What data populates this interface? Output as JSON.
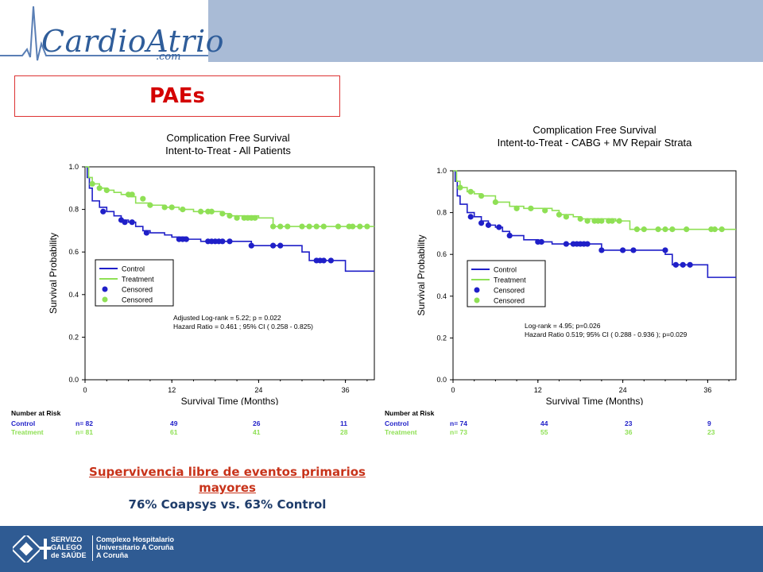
{
  "header": {
    "logo_main": "CardioAtrio",
    "logo_sub": ".com",
    "slide_title": "PAEs"
  },
  "caption": {
    "line1a": "Supervivencia libre de eventos primarios",
    "line1b": "mayores",
    "line2": "76% Coapsys vs.  63% Control"
  },
  "footer": {
    "org1a": "SERVIZO",
    "org1b": "GALEGO",
    "org1c": "de SAÚDE",
    "org2a": "Complexo Hospitalario",
    "org2b": "Universitario A Coruña",
    "org2c": "A Coruña"
  },
  "colors": {
    "control": "#1f1fc8",
    "treatment": "#8fe055",
    "topbar": "#a9bbd6",
    "footer": "#2f5b93"
  },
  "chart_data": [
    {
      "type": "line",
      "title": "Complication Free Survival",
      "subtitle": "Intent-to-Treat - All Patients",
      "xlabel": "Survival Time (Months)",
      "ylabel": "Survival Probability",
      "xlim": [
        0,
        40
      ],
      "ylim": [
        0,
        1.0
      ],
      "xticks": [
        "0",
        "12",
        "24",
        "36"
      ],
      "yticks": [
        "0.0",
        "0.2",
        "0.4",
        "0.6",
        "0.8",
        "1.0"
      ],
      "legend": [
        "Control",
        "Treatment",
        "Censored",
        "Censored"
      ],
      "annotation1": "Adjusted Log-rank = 5.22; p = 0.022",
      "annotation2": "Hazard Ratio = 0.461 ; 95% CI ( 0.258 - 0.825)",
      "series": [
        {
          "name": "Control",
          "step": [
            [
              0,
              1.0
            ],
            [
              0.3,
              0.95
            ],
            [
              0.6,
              0.9
            ],
            [
              1,
              0.84
            ],
            [
              2,
              0.81
            ],
            [
              3,
              0.79
            ],
            [
              4,
              0.77
            ],
            [
              5,
              0.75
            ],
            [
              6,
              0.74
            ],
            [
              7,
              0.72
            ],
            [
              8,
              0.7
            ],
            [
              9,
              0.69
            ],
            [
              11,
              0.68
            ],
            [
              12,
              0.67
            ],
            [
              14,
              0.66
            ],
            [
              16,
              0.65
            ],
            [
              18,
              0.65
            ],
            [
              21,
              0.65
            ],
            [
              23,
              0.63
            ],
            [
              26,
              0.63
            ],
            [
              30,
              0.6
            ],
            [
              31,
              0.56
            ],
            [
              33,
              0.56
            ],
            [
              36,
              0.51
            ],
            [
              40,
              0.51
            ]
          ],
          "censored": [
            [
              2.5,
              0.79
            ],
            [
              5,
              0.75
            ],
            [
              5.5,
              0.74
            ],
            [
              6.5,
              0.74
            ],
            [
              8.5,
              0.69
            ],
            [
              13,
              0.66
            ],
            [
              13.5,
              0.66
            ],
            [
              14,
              0.66
            ],
            [
              17,
              0.65
            ],
            [
              17.5,
              0.65
            ],
            [
              18,
              0.65
            ],
            [
              18.5,
              0.65
            ],
            [
              19,
              0.65
            ],
            [
              20,
              0.65
            ],
            [
              23,
              0.63
            ],
            [
              26,
              0.63
            ],
            [
              27,
              0.63
            ],
            [
              32,
              0.56
            ],
            [
              32.5,
              0.56
            ],
            [
              33,
              0.56
            ],
            [
              34,
              0.56
            ]
          ]
        },
        {
          "name": "Treatment",
          "step": [
            [
              0,
              1.0
            ],
            [
              0.5,
              0.95
            ],
            [
              1,
              0.92
            ],
            [
              2,
              0.9
            ],
            [
              3,
              0.89
            ],
            [
              4,
              0.88
            ],
            [
              5,
              0.87
            ],
            [
              6,
              0.86
            ],
            [
              7,
              0.83
            ],
            [
              9,
              0.82
            ],
            [
              11,
              0.81
            ],
            [
              13,
              0.8
            ],
            [
              15,
              0.79
            ],
            [
              17,
              0.79
            ],
            [
              19,
              0.78
            ],
            [
              20,
              0.77
            ],
            [
              24,
              0.76
            ],
            [
              26,
              0.72
            ],
            [
              30,
              0.72
            ],
            [
              36,
              0.72
            ],
            [
              40,
              0.72
            ]
          ],
          "censored": [
            [
              1,
              0.92
            ],
            [
              2,
              0.9
            ],
            [
              3,
              0.89
            ],
            [
              6,
              0.87
            ],
            [
              6.5,
              0.87
            ],
            [
              8,
              0.85
            ],
            [
              9,
              0.82
            ],
            [
              11,
              0.81
            ],
            [
              12,
              0.81
            ],
            [
              13.5,
              0.8
            ],
            [
              16,
              0.79
            ],
            [
              17,
              0.79
            ],
            [
              17.5,
              0.79
            ],
            [
              19,
              0.78
            ],
            [
              20,
              0.77
            ],
            [
              21,
              0.76
            ],
            [
              22,
              0.76
            ],
            [
              22.5,
              0.76
            ],
            [
              23,
              0.76
            ],
            [
              23.5,
              0.76
            ],
            [
              26,
              0.72
            ],
            [
              27,
              0.72
            ],
            [
              28,
              0.72
            ],
            [
              30,
              0.72
            ],
            [
              31,
              0.72
            ],
            [
              32,
              0.72
            ],
            [
              33,
              0.72
            ],
            [
              35,
              0.72
            ],
            [
              36.5,
              0.72
            ],
            [
              37,
              0.72
            ],
            [
              38,
              0.72
            ],
            [
              39,
              0.72
            ]
          ]
        }
      ],
      "risk": {
        "header": "Number at Risk",
        "rows": [
          {
            "name": "Control",
            "values": [
              "n= 82",
              "49",
              "26",
              "11"
            ]
          },
          {
            "name": "Treatment",
            "values": [
              "n= 81",
              "61",
              "41",
              "28"
            ]
          }
        ]
      }
    },
    {
      "type": "line",
      "title": "Complication Free Survival",
      "subtitle": "Intent-to-Treat - CABG + MV Repair Strata",
      "xlabel": "Survival Time (Months)",
      "ylabel": "Survival Probability",
      "xlim": [
        0,
        40
      ],
      "ylim": [
        0,
        1.0
      ],
      "xticks": [
        "0",
        "12",
        "24",
        "36"
      ],
      "yticks": [
        "0.0",
        "0.2",
        "0.4",
        "0.6",
        "0.8",
        "1.0"
      ],
      "legend": [
        "Control",
        "Treatment",
        "Censored",
        "Censored"
      ],
      "annotation1": "Log-rank = 4.95; p=0.026",
      "annotation2": "Hazard Ratio 0.519; 95% CI ( 0.288 -  0.936 ); p=0.029",
      "series": [
        {
          "name": "Control",
          "step": [
            [
              0,
              1.0
            ],
            [
              0.3,
              0.95
            ],
            [
              0.6,
              0.88
            ],
            [
              1,
              0.84
            ],
            [
              2,
              0.8
            ],
            [
              3,
              0.78
            ],
            [
              4,
              0.76
            ],
            [
              5,
              0.74
            ],
            [
              6,
              0.73
            ],
            [
              7,
              0.71
            ],
            [
              8,
              0.69
            ],
            [
              10,
              0.67
            ],
            [
              12,
              0.66
            ],
            [
              14,
              0.65
            ],
            [
              16,
              0.65
            ],
            [
              19,
              0.65
            ],
            [
              21,
              0.62
            ],
            [
              24,
              0.62
            ],
            [
              30,
              0.6
            ],
            [
              31,
              0.55
            ],
            [
              33,
              0.55
            ],
            [
              36,
              0.49
            ],
            [
              40,
              0.49
            ]
          ],
          "censored": [
            [
              2.5,
              0.78
            ],
            [
              4,
              0.75
            ],
            [
              5,
              0.74
            ],
            [
              6.5,
              0.73
            ],
            [
              8,
              0.69
            ],
            [
              12,
              0.66
            ],
            [
              12.5,
              0.66
            ],
            [
              16,
              0.65
            ],
            [
              17,
              0.65
            ],
            [
              17.5,
              0.65
            ],
            [
              18,
              0.65
            ],
            [
              18.5,
              0.65
            ],
            [
              19,
              0.65
            ],
            [
              21,
              0.62
            ],
            [
              24,
              0.62
            ],
            [
              25.5,
              0.62
            ],
            [
              30,
              0.62
            ],
            [
              31.5,
              0.55
            ],
            [
              32.5,
              0.55
            ],
            [
              33.5,
              0.55
            ]
          ]
        },
        {
          "name": "Treatment",
          "step": [
            [
              0,
              1.0
            ],
            [
              0.5,
              0.95
            ],
            [
              1,
              0.92
            ],
            [
              2,
              0.9
            ],
            [
              3,
              0.89
            ],
            [
              4,
              0.88
            ],
            [
              6,
              0.85
            ],
            [
              8,
              0.83
            ],
            [
              10,
              0.82
            ],
            [
              14,
              0.81
            ],
            [
              15,
              0.79
            ],
            [
              17,
              0.78
            ],
            [
              18,
              0.77
            ],
            [
              23,
              0.76
            ],
            [
              25,
              0.72
            ],
            [
              30,
              0.72
            ],
            [
              36,
              0.72
            ],
            [
              40,
              0.72
            ]
          ],
          "censored": [
            [
              1,
              0.92
            ],
            [
              2.5,
              0.9
            ],
            [
              4,
              0.88
            ],
            [
              6,
              0.85
            ],
            [
              9,
              0.82
            ],
            [
              11,
              0.82
            ],
            [
              13,
              0.81
            ],
            [
              15,
              0.79
            ],
            [
              16,
              0.78
            ],
            [
              18,
              0.77
            ],
            [
              19,
              0.76
            ],
            [
              20,
              0.76
            ],
            [
              20.5,
              0.76
            ],
            [
              21,
              0.76
            ],
            [
              22,
              0.76
            ],
            [
              22.5,
              0.76
            ],
            [
              23.5,
              0.76
            ],
            [
              26,
              0.72
            ],
            [
              27,
              0.72
            ],
            [
              29,
              0.72
            ],
            [
              30,
              0.72
            ],
            [
              31,
              0.72
            ],
            [
              33,
              0.72
            ],
            [
              36.5,
              0.72
            ],
            [
              37,
              0.72
            ],
            [
              38,
              0.72
            ]
          ]
        }
      ],
      "risk": {
        "header": "Number at Risk",
        "rows": [
          {
            "name": "Control",
            "values": [
              "n= 74",
              "44",
              "23",
              "9"
            ]
          },
          {
            "name": "Treatment",
            "values": [
              "n= 73",
              "55",
              "36",
              "23"
            ]
          }
        ]
      }
    }
  ]
}
